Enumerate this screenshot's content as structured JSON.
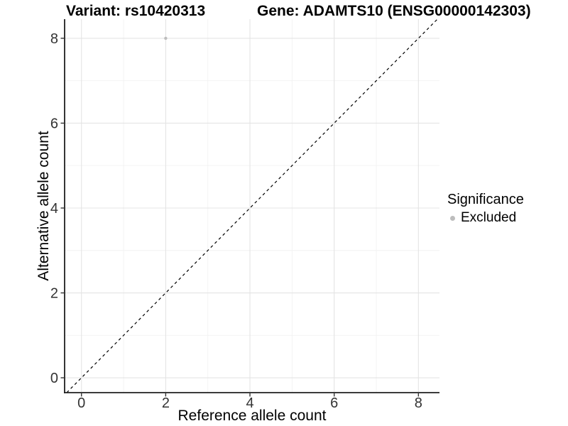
{
  "titles": {
    "left": "Variant: rs10420313",
    "right": "Gene: ADAMTS10 (ENSG00000142303)"
  },
  "chart_data": {
    "type": "scatter",
    "xlabel": "Reference allele count",
    "ylabel": "Alternative allele count",
    "xlim": [
      -0.4,
      8.5
    ],
    "ylim": [
      -0.35,
      8.45
    ],
    "x_ticks": [
      0,
      2,
      4,
      6,
      8
    ],
    "y_ticks": [
      0,
      2,
      4,
      6,
      8
    ],
    "x_minor_ticks": [
      1,
      3,
      5,
      7
    ],
    "y_minor_ticks": [
      1,
      3,
      5,
      7
    ],
    "grid": true,
    "reference_line": {
      "type": "identity",
      "equation": "y = x",
      "style": "dashed",
      "color": "#000000"
    },
    "series": [
      {
        "name": "Excluded",
        "color": "#bdbdbd",
        "points": [
          {
            "x": 2,
            "y": 8
          }
        ]
      }
    ],
    "legend": {
      "title": "Significance",
      "position": "right",
      "entries": [
        {
          "label": "Excluded",
          "color": "#bdbdbd"
        }
      ]
    }
  },
  "colors": {
    "background": "#ffffff",
    "grid_major": "#e4e4e4",
    "grid_minor": "#f2f2f2",
    "axis_line": "#1f1f1f",
    "tick": "#333333",
    "text": "#000000"
  }
}
